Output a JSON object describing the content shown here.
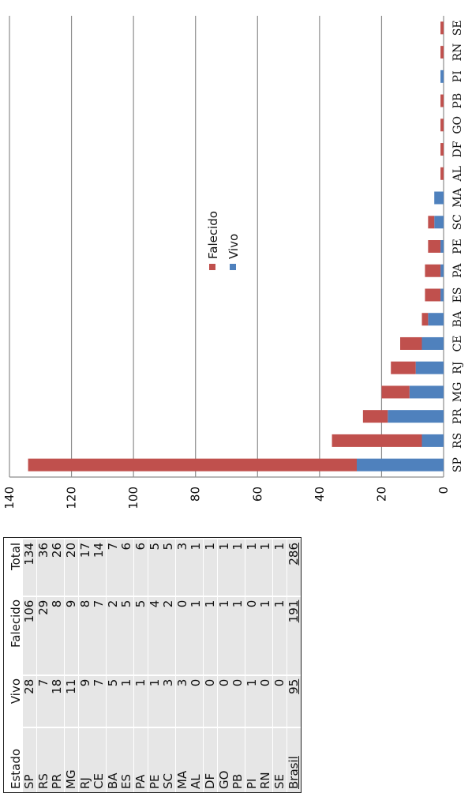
{
  "table": {
    "headers": [
      "Estado",
      "Vivo",
      "Falecido",
      "Total"
    ],
    "rows": [
      [
        "SP",
        "28",
        "106",
        "134"
      ],
      [
        "RS",
        "7",
        "29",
        "36"
      ],
      [
        "PR",
        "18",
        "8",
        "26"
      ],
      [
        "MG",
        "11",
        "9",
        "20"
      ],
      [
        "RJ",
        "9",
        "8",
        "17"
      ],
      [
        "CE",
        "7",
        "7",
        "14"
      ],
      [
        "BA",
        "5",
        "2",
        "7"
      ],
      [
        "ES",
        "1",
        "5",
        "6"
      ],
      [
        "PA",
        "1",
        "5",
        "6"
      ],
      [
        "PE",
        "1",
        "4",
        "5"
      ],
      [
        "SC",
        "3",
        "2",
        "5"
      ],
      [
        "MA",
        "3",
        "0",
        "3"
      ],
      [
        "AL",
        "0",
        "1",
        "1"
      ],
      [
        "DF",
        "0",
        "1",
        "1"
      ],
      [
        "GO",
        "0",
        "1",
        "1"
      ],
      [
        "PB",
        "0",
        "1",
        "1"
      ],
      [
        "PI",
        "1",
        "0",
        "1"
      ],
      [
        "RN",
        "0",
        "1",
        "1"
      ],
      [
        "SE",
        "0",
        "1",
        "1"
      ]
    ],
    "total_row": [
      "Brasil",
      "95",
      "191",
      "286"
    ]
  },
  "chart_data": {
    "type": "bar",
    "stacked": true,
    "orientation": "vertical",
    "categories": [
      "SP",
      "RS",
      "PR",
      "MG",
      "RJ",
      "CE",
      "BA",
      "ES",
      "PA",
      "PE",
      "SC",
      "MA",
      "AL",
      "DF",
      "GO",
      "PB",
      "PI",
      "RN",
      "SE"
    ],
    "series": [
      {
        "name": "Vivo",
        "color": "#4f81bd",
        "values": [
          28,
          7,
          18,
          11,
          9,
          7,
          5,
          1,
          1,
          1,
          3,
          3,
          0,
          0,
          0,
          0,
          1,
          0,
          0
        ]
      },
      {
        "name": "Falecido",
        "color": "#c0504d",
        "values": [
          106,
          29,
          8,
          9,
          8,
          7,
          2,
          5,
          5,
          4,
          2,
          0,
          1,
          1,
          1,
          1,
          0,
          1,
          1
        ]
      }
    ],
    "yticks": [
      "0",
      "20",
      "40",
      "60",
      "80",
      "100",
      "120",
      "140"
    ],
    "ylim": [
      0,
      140
    ],
    "grid": true,
    "legend_position": "center"
  }
}
